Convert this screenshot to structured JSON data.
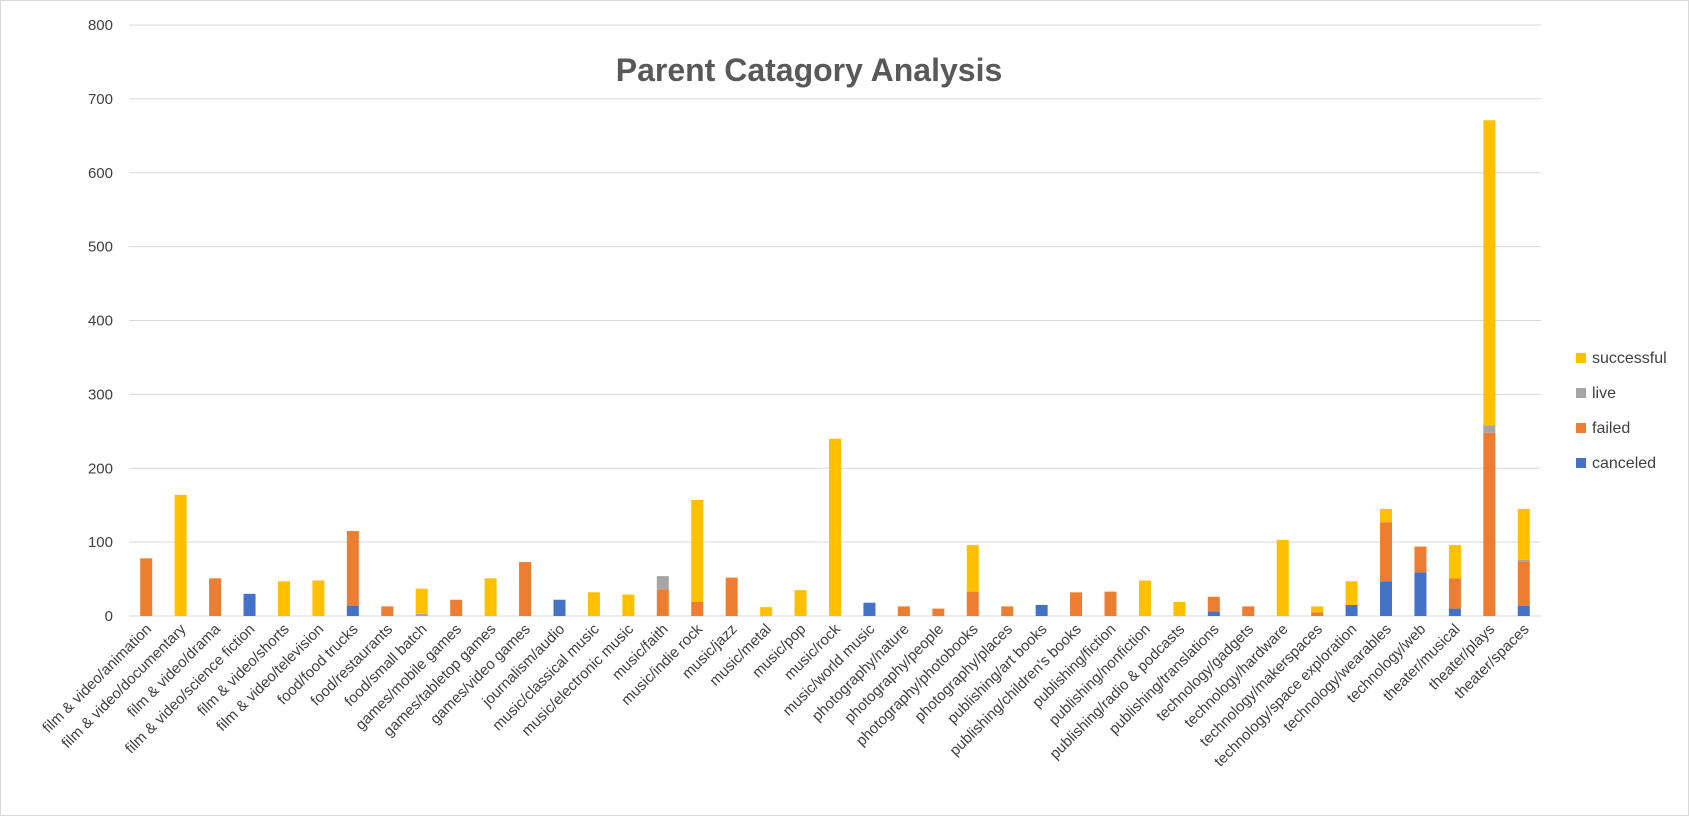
{
  "chart_data": {
    "type": "bar",
    "stacked": true,
    "title": "Parent Catagory Analysis",
    "xlabel": "",
    "ylabel": "",
    "ylim": [
      0,
      800
    ],
    "yticks": [
      "0",
      "100",
      "200",
      "300",
      "400",
      "500",
      "600",
      "700",
      "800"
    ],
    "grid": true,
    "legend_position": "right",
    "categories": [
      "film & video/animation",
      "film & video/documentary",
      "film & video/drama",
      "film & video/science fiction",
      "film & video/shorts",
      "film & video/television",
      "food/food trucks",
      "food/restaurants",
      "food/small batch",
      "games/mobile games",
      "games/tabletop games",
      "games/video games",
      "journalism/audio",
      "music/classical music",
      "music/electronic music",
      "music/faith",
      "music/indie rock",
      "music/jazz",
      "music/metal",
      "music/pop",
      "music/rock",
      "music/world music",
      "photography/nature",
      "photography/people",
      "photography/photobooks",
      "photography/places",
      "publishing/art books",
      "publishing/children's books",
      "publishing/fiction",
      "publishing/nonfiction",
      "publishing/radio & podcasts",
      "publishing/translations",
      "technology/gadgets",
      "technology/hardware",
      "technology/makerspaces",
      "technology/space exploration",
      "technology/wearables",
      "technology/web",
      "theater/musical",
      "theater/plays",
      "theater/spaces"
    ],
    "series": [
      {
        "name": "canceled",
        "color": "#4472C4",
        "values": [
          0,
          0,
          0,
          30,
          0,
          0,
          14,
          0,
          0,
          0,
          0,
          0,
          22,
          0,
          0,
          0,
          0,
          0,
          0,
          0,
          0,
          18,
          0,
          0,
          0,
          0,
          15,
          0,
          0,
          0,
          0,
          6,
          0,
          0,
          0,
          15,
          47,
          59,
          10,
          0,
          14
        ]
      },
      {
        "name": "failed",
        "color": "#ED7D31",
        "values": [
          78,
          0,
          51,
          0,
          0,
          0,
          101,
          13,
          0,
          22,
          0,
          73,
          0,
          0,
          0,
          36,
          19,
          52,
          0,
          0,
          0,
          0,
          13,
          10,
          33,
          13,
          0,
          32,
          33,
          0,
          0,
          20,
          13,
          0,
          5,
          0,
          80,
          35,
          41,
          248,
          60
        ]
      },
      {
        "name": "live",
        "color": "#A5A5A5",
        "values": [
          0,
          0,
          0,
          0,
          0,
          0,
          0,
          0,
          3,
          0,
          0,
          0,
          0,
          0,
          0,
          18,
          0,
          0,
          0,
          0,
          0,
          0,
          0,
          0,
          0,
          0,
          0,
          0,
          0,
          0,
          0,
          0,
          0,
          0,
          0,
          0,
          0,
          0,
          0,
          10,
          2
        ]
      },
      {
        "name": "successful",
        "color": "#FFC000",
        "values": [
          0,
          164,
          0,
          0,
          47,
          48,
          0,
          0,
          34,
          0,
          51,
          0,
          0,
          32,
          29,
          0,
          138,
          0,
          12,
          35,
          240,
          0,
          0,
          0,
          63,
          0,
          0,
          0,
          0,
          48,
          19,
          0,
          0,
          103,
          8,
          32,
          18,
          0,
          45,
          413,
          69
        ]
      }
    ],
    "legend_order": [
      "successful",
      "live",
      "failed",
      "canceled"
    ]
  }
}
